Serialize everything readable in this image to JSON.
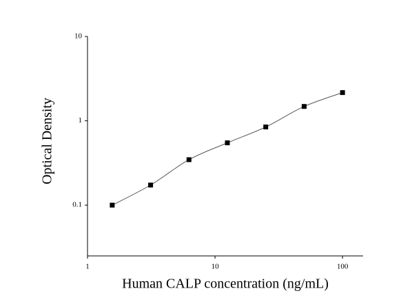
{
  "chart_data": {
    "type": "scatter",
    "x_label": "Human CALP concentration (ng/mL)",
    "y_label": "Optical Density",
    "x": [
      1.5625,
      3.125,
      6.25,
      12.5,
      25,
      50,
      100
    ],
    "series": [
      {
        "color": "#000000",
        "values": [
          0.1,
          0.173,
          0.346,
          0.548,
          0.845,
          1.48,
          2.16
        ]
      }
    ],
    "xscale": "log",
    "yscale": "log",
    "xlim": [
      1,
      145
    ],
    "xticks": [
      1,
      10,
      100
    ],
    "ylim": [
      0.025,
      10
    ],
    "yticks": [
      0.1,
      1,
      10
    ],
    "fit_line": true,
    "line_color": "#555555"
  }
}
